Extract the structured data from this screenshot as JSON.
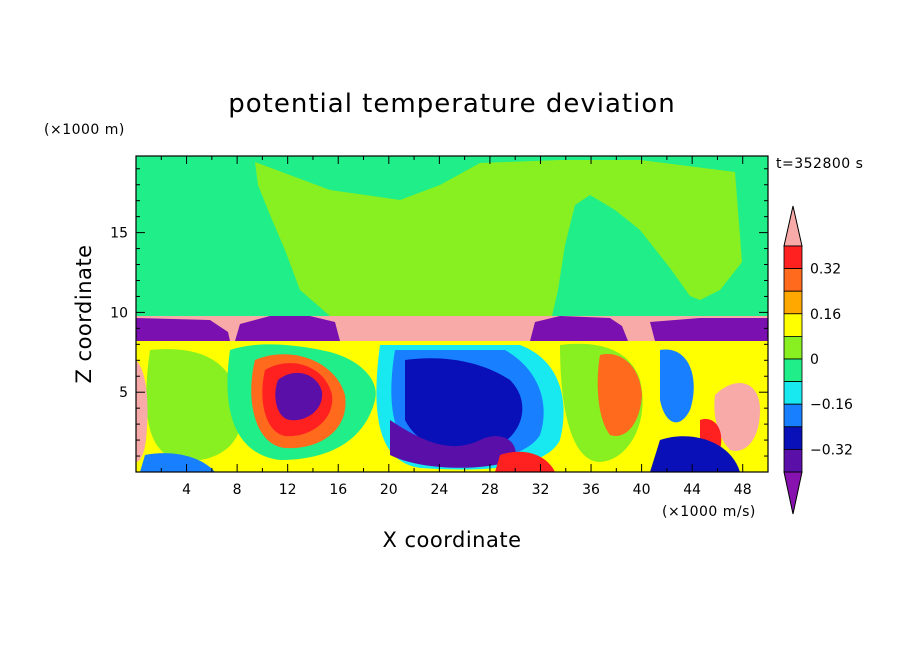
{
  "chart_data": {
    "type": "heatmap",
    "title": "potential temperature deviation",
    "xlabel": "X coordinate",
    "ylabel": "Z coordinate",
    "x_unit": "(×1000 m/s)",
    "y_unit": "(×1000 m)",
    "time_label": "t=352800 s",
    "xlim": [
      0,
      50
    ],
    "ylim": [
      0,
      19.8
    ],
    "x_ticks": [
      4,
      8,
      12,
      16,
      20,
      24,
      28,
      32,
      36,
      40,
      44,
      48
    ],
    "y_ticks": [
      5,
      10,
      15
    ],
    "colorbar": {
      "levels": [
        -0.4,
        -0.32,
        -0.24,
        -0.16,
        -0.08,
        0,
        0.08,
        0.16,
        0.24,
        0.32,
        0.4
      ],
      "labels": [
        "0.32",
        "0.16",
        "0",
        "−0.16",
        "−0.32"
      ],
      "label_values": [
        0.32,
        0.16,
        0,
        -0.16,
        -0.32
      ],
      "colors_top_to_bottom": [
        "#f8aaa8",
        "#ff2020",
        "#ff6a1c",
        "#ffa800",
        "#ffff00",
        "#88f020",
        "#20ee88",
        "#18e8f0",
        "#1880ff",
        "#0a10b8",
        "#5a10a8",
        "#8812b0"
      ]
    }
  }
}
